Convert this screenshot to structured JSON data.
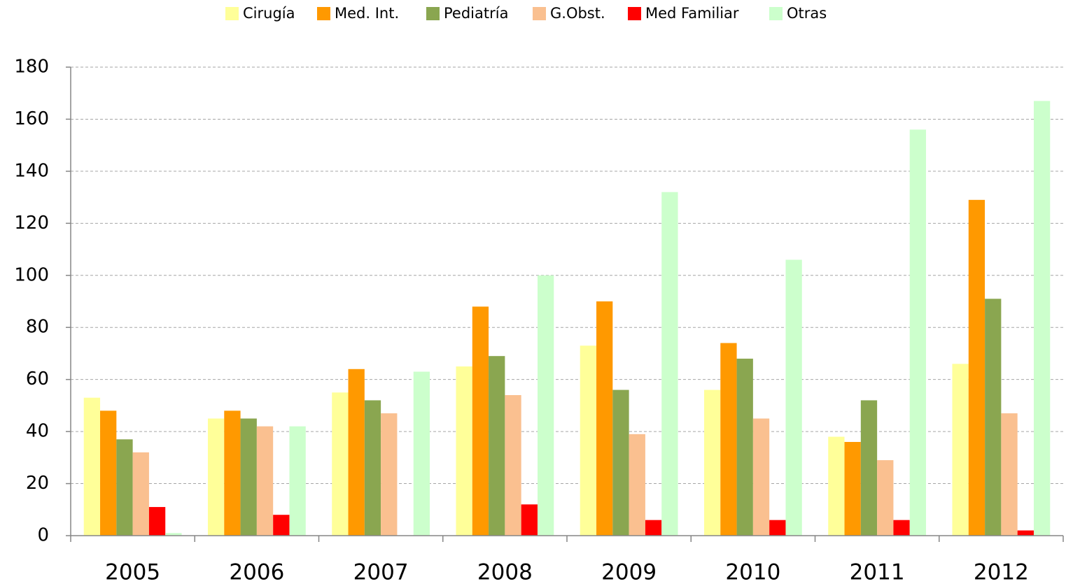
{
  "chart_data": {
    "type": "bar",
    "categories": [
      "2005",
      "2006",
      "2007",
      "2008",
      "2009",
      "2010",
      "2011",
      "2012"
    ],
    "series": [
      {
        "name": "Cirugía",
        "color": "#ffff99",
        "values": [
          53,
          45,
          55,
          65,
          73,
          56,
          38,
          66
        ]
      },
      {
        "name": "Med. Int.",
        "color": "#ff9900",
        "values": [
          48,
          48,
          64,
          88,
          90,
          74,
          36,
          129
        ]
      },
      {
        "name": "Pediatría",
        "color": "#8aa650",
        "values": [
          37,
          45,
          52,
          69,
          56,
          68,
          52,
          91
        ]
      },
      {
        "name": "G.Obst.",
        "color": "#fac090",
        "values": [
          32,
          42,
          47,
          54,
          39,
          45,
          29,
          47
        ]
      },
      {
        "name": "Med Familiar",
        "color": "#ff0000",
        "values": [
          11,
          8,
          0,
          12,
          6,
          6,
          6,
          2
        ]
      },
      {
        "name": "Otras",
        "color": "#ccffcc",
        "values": [
          1,
          42,
          63,
          100,
          132,
          106,
          156,
          167
        ]
      }
    ],
    "ylim": [
      0,
      180
    ],
    "yticks": [
      0,
      20,
      40,
      60,
      80,
      100,
      120,
      140,
      160,
      180
    ],
    "grid": true,
    "legend": "top"
  }
}
